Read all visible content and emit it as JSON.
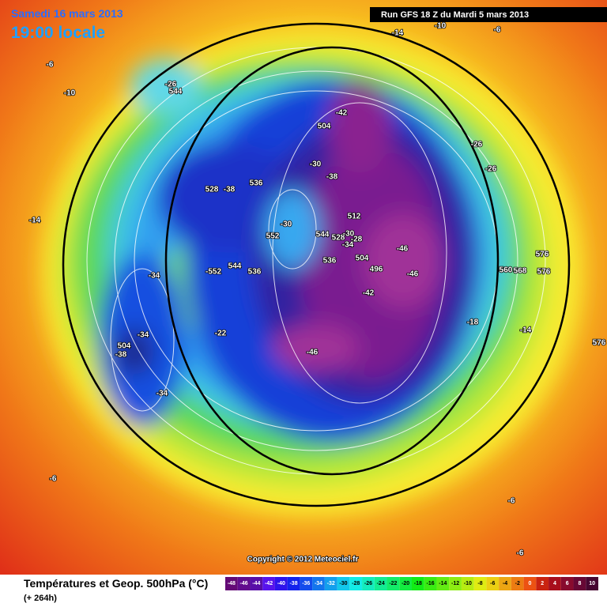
{
  "header": {
    "date": "Samedi 16 mars 2013",
    "time": "19:00 locale",
    "run": "Run GFS 18 Z du Mardi 5 mars 2013"
  },
  "map": {
    "labels": [
      "-14",
      "-10",
      "-6",
      "-6",
      "-10",
      "-26",
      "544",
      "-42",
      "504",
      "-26",
      "-26",
      "-30",
      "-38",
      "528",
      "-38",
      "536",
      "-14",
      "552",
      "-30",
      "512",
      "544",
      "528",
      "-30",
      "-28",
      "-34",
      "536",
      "504",
      "-46",
      "496",
      "-46",
      "-42",
      "576",
      "560",
      "568",
      "576",
      "-34",
      "-552",
      "544",
      "536",
      "-18",
      "-14",
      "576",
      "-34",
      "-22",
      "504",
      "-38",
      "-46",
      "-34",
      "-6",
      "-6",
      "-6"
    ],
    "copyright": "Copyright © 2012 Meteociel.fr"
  },
  "footer": {
    "title": "Températures et Geop. 500hPa (°C)",
    "lead": "(+ 264h)",
    "scale": [
      -48,
      -46,
      -44,
      -42,
      -40,
      -38,
      -36,
      -34,
      -32,
      -30,
      -28,
      -26,
      -24,
      -22,
      -20,
      -18,
      -16,
      -14,
      -12,
      -10,
      -8,
      -6,
      -4,
      -2,
      0,
      2,
      4,
      6,
      8,
      10
    ]
  }
}
